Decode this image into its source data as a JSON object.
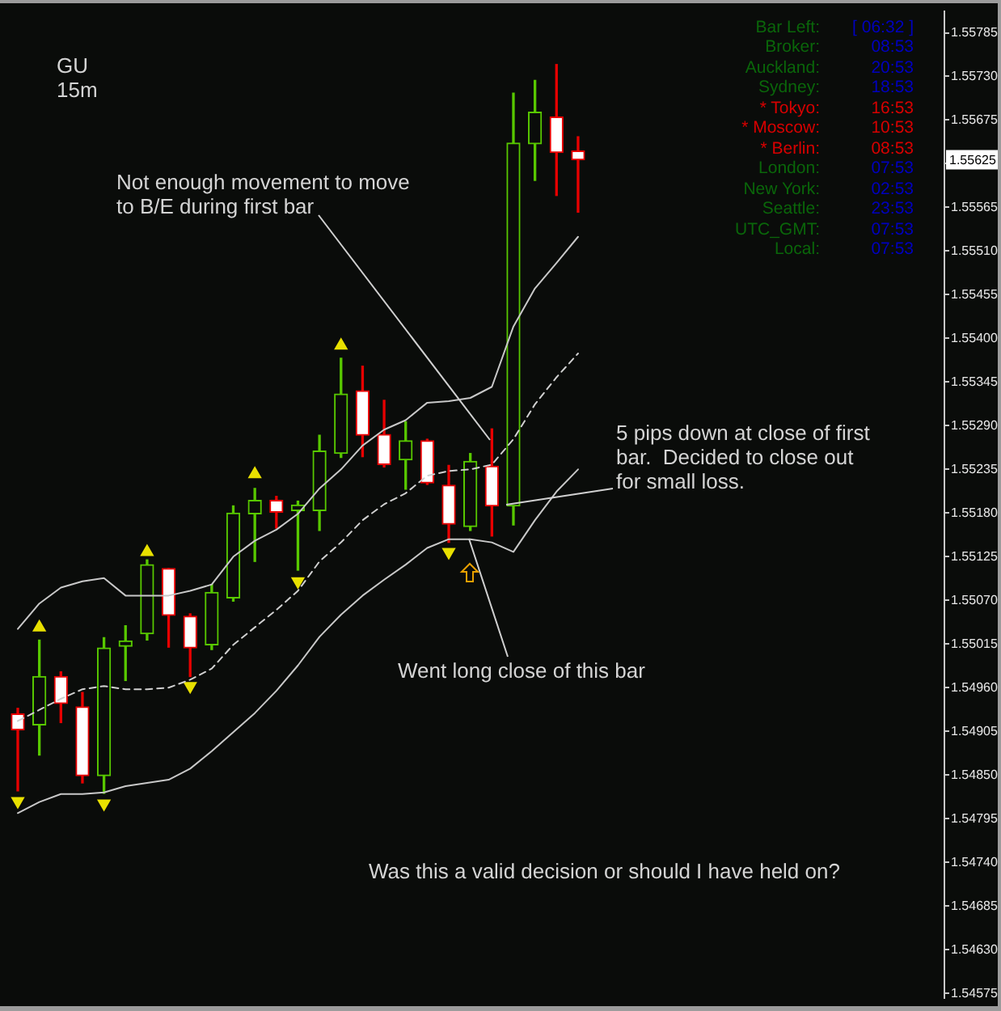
{
  "chart_data": {
    "type": "candlestick",
    "title": "GU",
    "subtitle": "15m",
    "categories": [
      null,
      null,
      null,
      null,
      null,
      null,
      null,
      null,
      null,
      null,
      null,
      null,
      null,
      null,
      null,
      null,
      null,
      null,
      null,
      null,
      null,
      null,
      null,
      null,
      null,
      null,
      null,
      null,
      null,
      null,
      null,
      null,
      null,
      null,
      null,
      null,
      null,
      null,
      null,
      null,
      null,
      null,
      null,
      null
    ],
    "ohlc": [
      [
        1.54927,
        1.54934,
        1.5483,
        1.54907
      ],
      [
        1.54913,
        1.5502,
        1.54875,
        1.54974
      ],
      [
        1.54974,
        1.5498,
        1.54916,
        1.5494
      ],
      [
        1.54936,
        1.54954,
        1.5484,
        1.54849
      ],
      [
        1.54849,
        1.55023,
        1.54827,
        1.5501
      ],
      [
        1.55012,
        1.55038,
        1.54969,
        1.55019
      ],
      [
        1.55028,
        1.55121,
        1.5502,
        1.55115
      ],
      [
        1.5511,
        1.5511,
        1.55011,
        1.55051
      ],
      [
        1.5505,
        1.55053,
        1.54974,
        1.5501
      ],
      [
        1.55014,
        1.5509,
        1.55008,
        1.5508
      ],
      [
        1.55073,
        1.55189,
        1.55069,
        1.5518
      ],
      [
        1.55179,
        1.55211,
        1.55119,
        1.55196
      ],
      [
        1.55196,
        1.55201,
        1.55161,
        1.55181
      ],
      [
        1.55183,
        1.55195,
        1.55108,
        1.5519
      ],
      [
        1.55183,
        1.55278,
        1.55158,
        1.55258
      ],
      [
        1.55255,
        1.55375,
        1.5525,
        1.5533
      ],
      [
        1.55334,
        1.55365,
        1.55251,
        1.55278
      ],
      [
        1.55279,
        1.55322,
        1.55238,
        1.55241
      ],
      [
        1.55247,
        1.55295,
        1.5521,
        1.55271
      ],
      [
        1.55271,
        1.55273,
        1.55216,
        1.55218
      ],
      [
        1.55215,
        1.5524,
        1.55143,
        1.55166
      ],
      [
        1.55163,
        1.55255,
        1.55158,
        1.55245
      ],
      [
        1.55239,
        1.55286,
        1.55151,
        1.55189
      ],
      [
        1.55189,
        1.55709,
        1.55165,
        1.55646
      ],
      [
        1.55645,
        1.55725,
        1.55599,
        1.55685
      ],
      [
        1.55679,
        1.55745,
        1.5558,
        1.55634
      ],
      [
        1.55636,
        1.55654,
        1.55559,
        1.55625
      ],
      null,
      null,
      null,
      null,
      null,
      null,
      null,
      null,
      null,
      null,
      null,
      null,
      null,
      null,
      null,
      null,
      null
    ],
    "colors": [
      "#e80000",
      "#58c800",
      "#e80000",
      "#e80000",
      "#58c800",
      "#58c800",
      "#58c800",
      "#e80000",
      "#e80000",
      "#58c800",
      "#58c800",
      "#58c800",
      "#e80000",
      "#58c800",
      "#58c800",
      "#58c800",
      "#e80000",
      "#e80000",
      "#58c800",
      "#e80000",
      "#e80000",
      "#58c800",
      "#e80000",
      "#58c800",
      "#58c800",
      "#e80000",
      "#e80000",
      null,
      null,
      null,
      null,
      null,
      null,
      null,
      null,
      null,
      null,
      null,
      null,
      null,
      null,
      null,
      null,
      null
    ],
    "series": [
      {
        "type": "line",
        "color": "#c8c8c8",
        "values": [
          1.55034,
          1.55066,
          1.55086,
          1.55094,
          1.55098,
          1.55076,
          1.55076,
          1.55076,
          1.55082,
          1.5509,
          1.55125,
          1.55145,
          1.55159,
          1.55179,
          1.55211,
          1.55235,
          1.55265,
          1.55285,
          1.55297,
          1.55319,
          1.55321,
          1.55325,
          1.55339,
          1.55415,
          1.55463,
          1.55495,
          1.55528,
          null,
          null,
          null,
          null,
          null,
          null,
          null,
          null,
          null,
          null,
          null,
          null,
          null,
          null,
          null,
          null,
          null
        ]
      },
      {
        "type": "line",
        "color": "#d0d0d0",
        "line_style": "dashed",
        "values": [
          1.54918,
          1.54932,
          1.54946,
          1.54958,
          1.54962,
          1.54958,
          1.54958,
          1.5496,
          1.5497,
          1.54984,
          1.55014,
          1.55036,
          1.55058,
          1.55082,
          1.55119,
          1.55143,
          1.55171,
          1.55191,
          1.55205,
          1.55227,
          1.55233,
          1.55235,
          1.55241,
          1.55273,
          1.55317,
          1.55351,
          1.55381,
          null,
          null,
          null,
          null,
          null,
          null,
          null,
          null,
          null,
          null,
          null,
          null,
          null,
          null,
          null,
          null,
          null
        ]
      },
      {
        "type": "line",
        "color": "#c8c8c8",
        "values": [
          1.54802,
          1.54816,
          1.54826,
          1.54826,
          1.54828,
          1.54836,
          1.5484,
          1.54844,
          1.54858,
          1.5488,
          1.54904,
          1.54928,
          1.54956,
          1.54988,
          1.55024,
          1.55052,
          1.55076,
          1.55096,
          1.55115,
          1.55136,
          1.55147,
          1.55147,
          1.55143,
          1.55131,
          1.55171,
          1.55207,
          1.55235,
          null,
          null,
          null,
          null,
          null,
          null,
          null,
          null,
          null,
          null,
          null,
          null,
          null,
          null,
          null,
          null,
          null
        ]
      },
      {
        "type": "scatter",
        "color": "#e8e000",
        "marker": "triangle",
        "values": [
          null,
          1.55036,
          null,
          null,
          null,
          null,
          1.55131,
          null,
          null,
          null,
          null,
          1.55229,
          null,
          null,
          null,
          1.55391,
          null,
          null,
          null,
          null,
          null,
          null,
          null,
          null,
          null,
          null,
          null,
          null,
          null,
          null,
          null,
          null,
          null,
          null,
          null,
          null,
          null,
          null,
          null,
          null,
          null,
          null,
          null,
          null
        ]
      },
      {
        "type": "scatter",
        "color": "#e8e000",
        "marker": "triangle",
        "values": [
          1.54817,
          null,
          null,
          null,
          1.54814,
          null,
          null,
          null,
          1.54962,
          null,
          null,
          null,
          null,
          1.55094,
          null,
          null,
          null,
          null,
          null,
          null,
          1.55131,
          null,
          null,
          null,
          null,
          null,
          null,
          null,
          null,
          null,
          null,
          null,
          null,
          null,
          null,
          null,
          null,
          null,
          null,
          null,
          null,
          null,
          null,
          null
        ]
      }
    ],
    "ylim": [
      1.54569,
      1.55812
    ],
    "yticks": [
      {
        "value": 1.54575,
        "label": "1.54575"
      },
      {
        "value": 1.5463,
        "label": "1.54630"
      },
      {
        "value": 1.54685,
        "label": "1.54685"
      },
      {
        "value": 1.5474,
        "label": "1.54740"
      },
      {
        "value": 1.54795,
        "label": "1.54795"
      },
      {
        "value": 1.5485,
        "label": "1.54850"
      },
      {
        "value": 1.54905,
        "label": "1.54905"
      },
      {
        "value": 1.5496,
        "label": "1.54960"
      },
      {
        "value": 1.55015,
        "label": "1.55015"
      },
      {
        "value": 1.5507,
        "label": "1.55070"
      },
      {
        "value": 1.55125,
        "label": "1.55125"
      },
      {
        "value": 1.5518,
        "label": "1.55180"
      },
      {
        "value": 1.55235,
        "label": "1.55235"
      },
      {
        "value": 1.5529,
        "label": "1.55290"
      },
      {
        "value": 1.55345,
        "label": "1.55345"
      },
      {
        "value": 1.554,
        "label": "1.55400"
      },
      {
        "value": 1.55455,
        "label": "1.55455"
      },
      {
        "value": 1.5551,
        "label": "1.55510"
      },
      {
        "value": 1.55565,
        "label": "1.55565"
      },
      {
        "value": 1.5562,
        "label": null
      },
      {
        "value": 1.55675,
        "label": "1.55675"
      },
      {
        "value": 1.5573,
        "label": "1.55730"
      },
      {
        "value": 1.55785,
        "label": "1.55785"
      }
    ],
    "tick_labels": "y",
    "annotations": [
      "Not enough movement to move to B/E during first bar",
      "5 pips down at close of first bar.  Decided to close out for small loss.",
      "Went long close of this bar",
      "Was this a valid decision or should I have held on?",
      "Bar Left:",
      "[ 06:32 ]",
      "Broker:",
      "08:53",
      "Auckland:",
      "20:53",
      "Sydney:",
      "18:53",
      "* Tokyo:",
      "16:53",
      "* Moscow:",
      "10:53",
      "* Berlin:",
      "08:53",
      "London:",
      "07:53",
      "New York:",
      "02:53",
      "Seattle:",
      "23:53",
      "UTC_GMT:",
      "07:53",
      "Local:",
      "07:53",
      {
        "text": "1.55625",
        "y": 1.55625
      }
    ]
  }
}
